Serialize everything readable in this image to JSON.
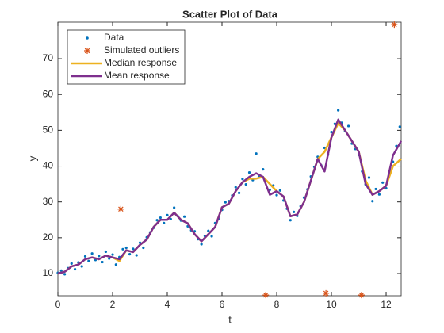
{
  "chart_data": {
    "type": "scatter",
    "title": "Scatter Plot of Data",
    "x_label": "t",
    "y_label": "y",
    "xlim": [
      0,
      12.55
    ],
    "ylim": [
      3.8,
      80.2
    ],
    "xticks": [
      0,
      2,
      4,
      6,
      8,
      10,
      12
    ],
    "yticks": [
      10,
      20,
      30,
      40,
      50,
      60,
      70
    ],
    "legend_position": "upper-left",
    "series": [
      {
        "name": "Data",
        "color": "#0072BD",
        "marker": "dot",
        "x": [
          0,
          0.125,
          0.25,
          0.375,
          0.5,
          0.625,
          0.75,
          0.875,
          1,
          1.125,
          1.25,
          1.375,
          1.5,
          1.625,
          1.75,
          1.875,
          2,
          2.125,
          2.25,
          2.375,
          2.5,
          2.625,
          2.75,
          2.875,
          3,
          3.125,
          3.25,
          3.375,
          3.5,
          3.625,
          3.75,
          3.875,
          4,
          4.125,
          4.25,
          4.375,
          4.5,
          4.625,
          4.75,
          4.875,
          5,
          5.125,
          5.25,
          5.375,
          5.5,
          5.625,
          5.75,
          5.875,
          6,
          6.125,
          6.25,
          6.375,
          6.5,
          6.625,
          6.75,
          6.875,
          7,
          7.125,
          7.25,
          7.375,
          7.5,
          7.625,
          7.75,
          7.875,
          8,
          8.125,
          8.25,
          8.375,
          8.5,
          8.625,
          8.75,
          8.875,
          9,
          9.125,
          9.25,
          9.375,
          9.5,
          9.625,
          9.75,
          9.875,
          10,
          10.125,
          10.25,
          10.375,
          10.5,
          10.625,
          10.75,
          10.875,
          11,
          11.125,
          11.25,
          11.375,
          11.5,
          11.625,
          11.75,
          11.875,
          12,
          12.125,
          12.25,
          12.375,
          12.5
        ],
        "values": [
          10.2,
          10.8,
          9.8,
          11.5,
          12.8,
          11.2,
          13.1,
          12.0,
          14.8,
          13.5,
          15.6,
          13.8,
          14.9,
          13.2,
          16.1,
          14.2,
          15.3,
          12.5,
          14.6,
          16.8,
          17.2,
          15.4,
          16.9,
          15.1,
          18.6,
          17.2,
          20.1,
          21.5,
          22.8,
          24.9,
          25.6,
          24.1,
          26.3,
          25.2,
          28.4,
          26.1,
          24.8,
          25.9,
          23.2,
          22.1,
          21.8,
          19.6,
          18.2,
          20.5,
          21.9,
          20.4,
          24.1,
          25.3,
          27.8,
          29.9,
          30.2,
          31.8,
          34.1,
          32.5,
          36.4,
          34.9,
          38.2,
          36.1,
          43.5,
          37.2,
          39.1,
          35.8,
          33.4,
          34.6,
          31.9,
          33.2,
          30.4,
          28.1,
          24.9,
          27.2,
          26.1,
          28.8,
          31.2,
          33.5,
          37.1,
          39.8,
          42.6,
          40.2,
          45.1,
          43.2,
          49.5,
          51.8,
          55.6,
          52.1,
          49.8,
          51.2,
          46.3,
          44.8,
          43.1,
          38.5,
          34.9,
          36.8,
          30.2,
          33.6,
          32.1,
          35.4,
          33.8,
          37.9,
          41.2,
          45.6,
          51.0
        ]
      },
      {
        "name": "Simulated outliers",
        "color": "#D95319",
        "marker": "asterisk",
        "x": [
          2.3,
          7.6,
          9.8,
          11.1,
          12.3
        ],
        "values": [
          28,
          4,
          4.5,
          4,
          79.5
        ]
      },
      {
        "name": "Median response",
        "color": "#EDB120",
        "marker": "line",
        "x": [
          0,
          0.25,
          0.5,
          0.75,
          1,
          1.25,
          1.5,
          1.75,
          2,
          2.25,
          2.5,
          2.75,
          3,
          3.25,
          3.5,
          3.75,
          4,
          4.25,
          4.5,
          4.75,
          5,
          5.25,
          5.5,
          5.75,
          6,
          6.25,
          6.5,
          6.75,
          7,
          7.25,
          7.5,
          7.75,
          8,
          8.25,
          8.5,
          8.75,
          9,
          9.25,
          9.5,
          9.75,
          10,
          10.25,
          10.5,
          10.75,
          11,
          11.25,
          11.5,
          11.75,
          12,
          12.25,
          12.55
        ],
        "values": [
          10,
          10.5,
          12,
          12.5,
          14,
          14.5,
          14,
          15,
          14.5,
          13.5,
          16.5,
          16,
          18,
          19.5,
          23,
          25,
          25,
          27,
          25,
          24,
          21,
          19,
          21,
          23,
          28.5,
          29.5,
          33,
          35.5,
          36.5,
          36.5,
          37,
          35,
          33,
          31.5,
          26,
          26.5,
          30,
          36,
          42,
          44,
          48,
          52,
          50,
          47,
          44,
          36,
          32,
          33,
          34.5,
          40,
          42
        ]
      },
      {
        "name": "Mean response",
        "color": "#7E2F8E",
        "marker": "line",
        "x": [
          0,
          0.25,
          0.5,
          0.75,
          1,
          1.25,
          1.5,
          1.75,
          2,
          2.25,
          2.5,
          2.75,
          3,
          3.25,
          3.5,
          3.75,
          4,
          4.25,
          4.5,
          4.75,
          5,
          5.25,
          5.5,
          5.75,
          6,
          6.25,
          6.5,
          6.75,
          7,
          7.25,
          7.5,
          7.75,
          8,
          8.25,
          8.5,
          8.75,
          9,
          9.25,
          9.5,
          9.75,
          10,
          10.25,
          10.5,
          10.75,
          11,
          11.25,
          11.5,
          11.75,
          12,
          12.25,
          12.55
        ],
        "values": [
          10,
          10.5,
          12,
          12.5,
          14,
          14.5,
          14,
          15,
          14.5,
          14,
          16.5,
          16,
          18,
          19.5,
          23,
          25,
          25,
          27,
          25,
          24,
          21,
          19,
          21,
          23,
          28.5,
          29.5,
          33,
          35.5,
          37,
          38,
          37,
          32,
          33,
          31.5,
          26,
          26.5,
          30,
          36,
          42,
          38.5,
          48,
          53,
          50,
          47,
          44,
          35,
          32,
          33,
          34.5,
          43,
          47
        ]
      }
    ]
  }
}
